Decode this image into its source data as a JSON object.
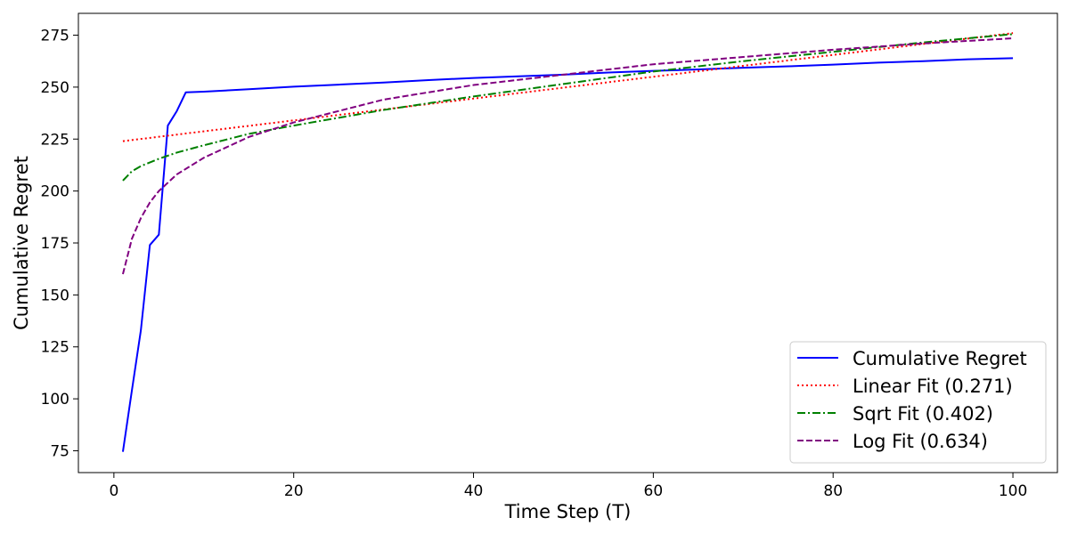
{
  "chart_data": {
    "type": "line",
    "title": "",
    "xlabel": "Time Step (T)",
    "ylabel": "Cumulative Regret",
    "xlim": [
      -3.95,
      104.95
    ],
    "ylim": [
      64.5,
      285.5
    ],
    "xticks": [
      0,
      20,
      40,
      60,
      80,
      100
    ],
    "yticks": [
      75,
      100,
      125,
      150,
      175,
      200,
      225,
      250,
      275
    ],
    "grid": false,
    "legend_position": "lower right",
    "series": [
      {
        "name": "Cumulative Regret",
        "color": "#0000ff",
        "style": "solid",
        "x": [
          1,
          2,
          3,
          4,
          5,
          6,
          7,
          8,
          10,
          15,
          20,
          25,
          30,
          35,
          40,
          45,
          50,
          55,
          60,
          65,
          70,
          75,
          80,
          85,
          90,
          95,
          100
        ],
        "y": [
          74.5,
          104,
          133,
          174,
          179,
          231.5,
          238.5,
          247.5,
          247.8,
          249,
          250.2,
          251.2,
          252.2,
          253.4,
          254.4,
          255.2,
          256.0,
          257.0,
          257.8,
          258.5,
          259.3,
          260.0,
          260.8,
          261.8,
          262.5,
          263.4,
          263.9
        ]
      },
      {
        "name": "Linear Fit (0.271)",
        "color": "#ff0000",
        "style": "dotted",
        "x": [
          1,
          100
        ],
        "y": [
          224,
          276
        ]
      },
      {
        "name": "Sqrt Fit (0.402)",
        "color": "#008000",
        "style": "dashdot",
        "x": [
          1,
          2,
          3,
          5,
          7,
          10,
          15,
          20,
          30,
          40,
          50,
          60,
          70,
          80,
          90,
          100
        ],
        "y": [
          205,
          209.5,
          212,
          215.5,
          218.5,
          222,
          227.5,
          231.5,
          239,
          245.5,
          251.5,
          257.5,
          262.5,
          267,
          271.5,
          275.5
        ]
      },
      {
        "name": "Log Fit (0.634)",
        "color": "#800080",
        "style": "dashed",
        "x": [
          1,
          2,
          3,
          4,
          5,
          7,
          10,
          15,
          20,
          30,
          40,
          50,
          60,
          70,
          80,
          90,
          100
        ],
        "y": [
          160,
          177,
          187,
          194.5,
          200,
          208,
          216,
          226,
          233,
          244,
          251,
          256,
          261,
          264.5,
          268,
          271,
          273.5
        ]
      }
    ]
  }
}
